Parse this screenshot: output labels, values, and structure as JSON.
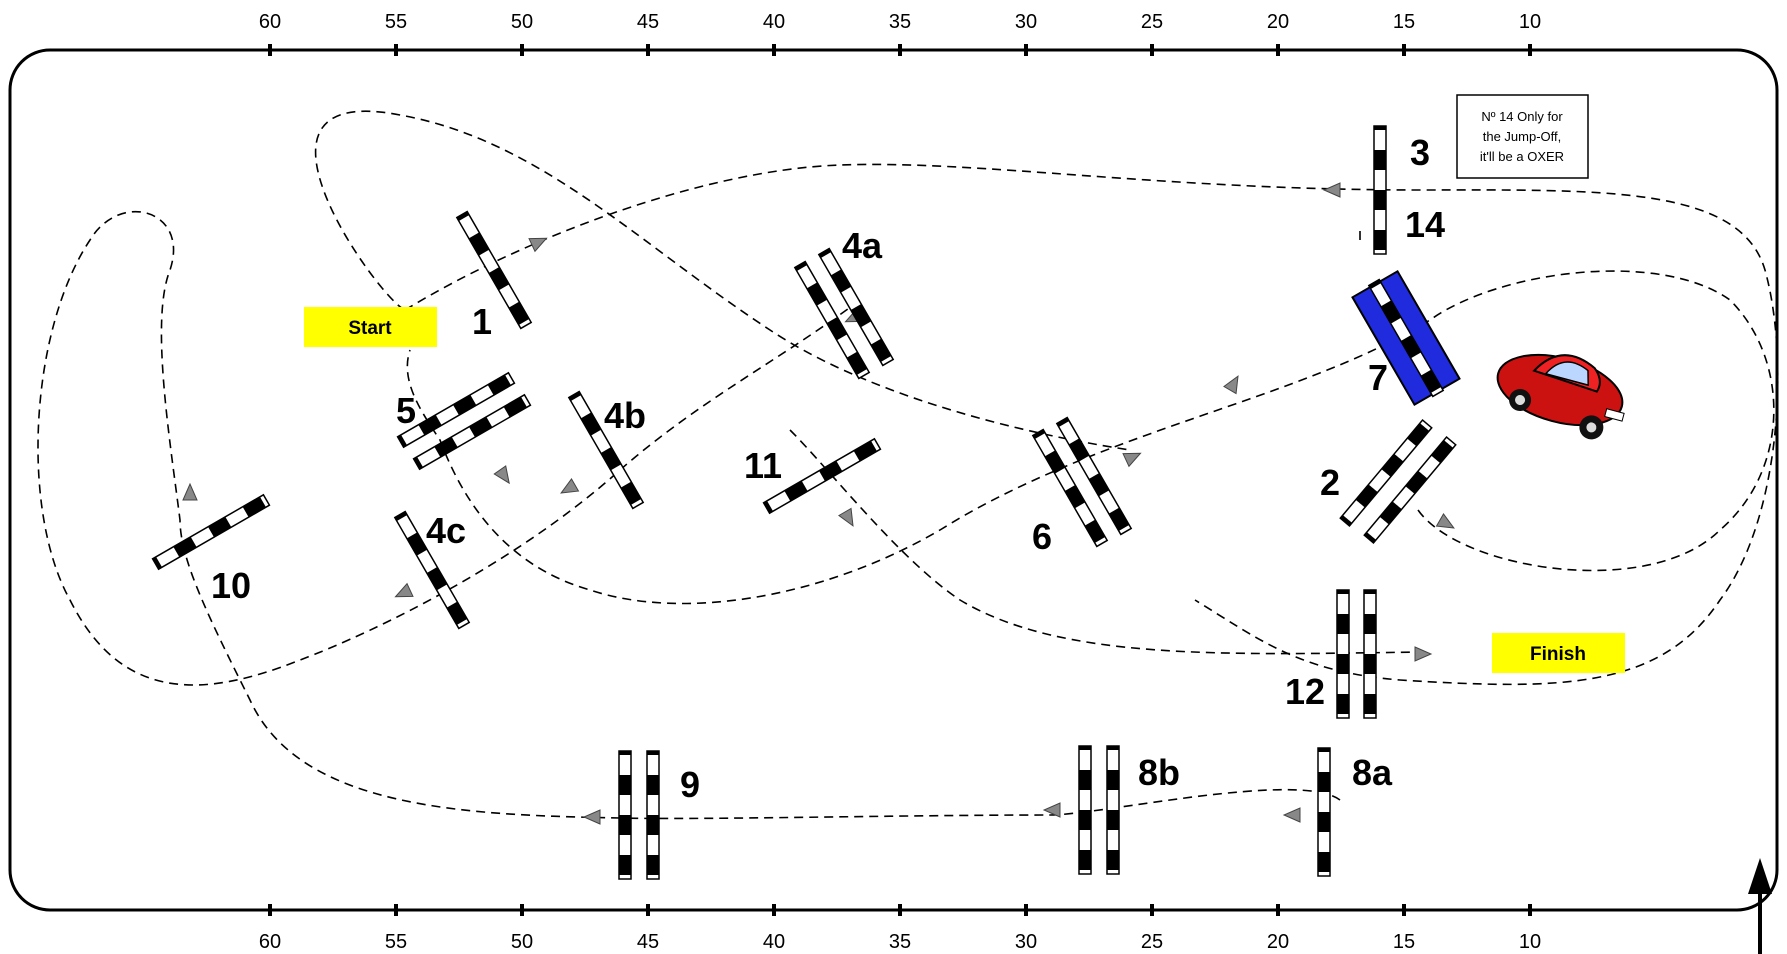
{
  "ruler": {
    "top_ticks": [
      "60",
      "55",
      "50",
      "45",
      "40",
      "35",
      "30",
      "25",
      "20",
      "15",
      "10"
    ],
    "bottom_ticks": [
      "60",
      "55",
      "50",
      "45",
      "40",
      "35",
      "30",
      "25",
      "20",
      "15",
      "10"
    ]
  },
  "markers": {
    "start": "Start",
    "finish": "Finish"
  },
  "note": {
    "line1": "Nº 14 Only for",
    "line2": "the Jump-Off,",
    "line3": "it'll be a OXER"
  },
  "obstacles": {
    "o1": "1",
    "o2": "2",
    "o3": "3",
    "o4a": "4a",
    "o4b": "4b",
    "o4c": "4c",
    "o5": "5",
    "o6": "6",
    "o7": "7",
    "o8a": "8a",
    "o8b": "8b",
    "o9": "9",
    "o10": "10",
    "o11": "11",
    "o12": "12",
    "o14": "14"
  },
  "colors": {
    "jump_highlight": "#1f2bdc",
    "marker_fill": "#ffff00",
    "car": "#cc1111"
  },
  "icons": {
    "car": "car-icon",
    "north_arrow": "arrow-up-icon"
  }
}
